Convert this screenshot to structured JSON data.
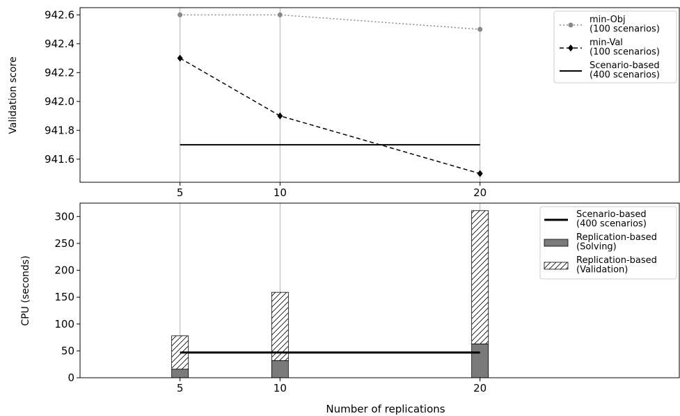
{
  "colors": {
    "minobj": "#888888",
    "minval": "#000000",
    "scenario": "#000000",
    "solving": "#7a7a7a",
    "validation_fill": "#ffffff",
    "grid": "#b0b0b0"
  },
  "chart_data": [
    {
      "type": "line",
      "ylabel": "Validation score",
      "xlabel": "",
      "x": [
        5,
        10,
        20
      ],
      "xticks": [
        "5",
        "10",
        "20"
      ],
      "yticks": [
        "941.6",
        "941.8",
        "942.0",
        "942.2",
        "942.4",
        "942.6"
      ],
      "xlim": [
        0,
        30
      ],
      "ylim": [
        941.44,
        942.65
      ],
      "grid": "vertical",
      "legend_position": "top-right",
      "series": [
        {
          "name": "min-Obj\n(100 scenarios)",
          "style": "dotted",
          "marker": "circle",
          "values": [
            942.6,
            942.6,
            942.5
          ]
        },
        {
          "name": "min-Val\n(100 scenarios)",
          "style": "dashed",
          "marker": "diamond",
          "values": [
            942.3,
            941.9,
            941.5
          ]
        },
        {
          "name": "Scenario-based\n(400 scenarios)",
          "style": "solid",
          "marker": "none",
          "values": [
            941.7,
            941.7,
            941.7
          ]
        }
      ]
    },
    {
      "type": "bar",
      "ylabel": "CPU (seconds)",
      "xlabel": "Number of replications",
      "categories": [
        5,
        10,
        20
      ],
      "xticks": [
        "5",
        "10",
        "20"
      ],
      "yticks": [
        "0",
        "50",
        "100",
        "150",
        "200",
        "250",
        "300"
      ],
      "xlim": [
        0,
        30
      ],
      "ylim": [
        0,
        325
      ],
      "grid": "vertical",
      "stacked": true,
      "legend_position": "top-right",
      "series": [
        {
          "name": "Replication-based\n(Solving)",
          "pattern": "solid",
          "values": [
            16,
            32,
            63
          ]
        },
        {
          "name": "Replication-based\n(Validation)",
          "pattern": "hatch",
          "values": [
            62,
            127,
            248
          ]
        }
      ],
      "reference_line": {
        "name": "Scenario-based\n(400 scenarios)",
        "value": 47,
        "x_range": [
          5,
          20
        ]
      }
    }
  ]
}
